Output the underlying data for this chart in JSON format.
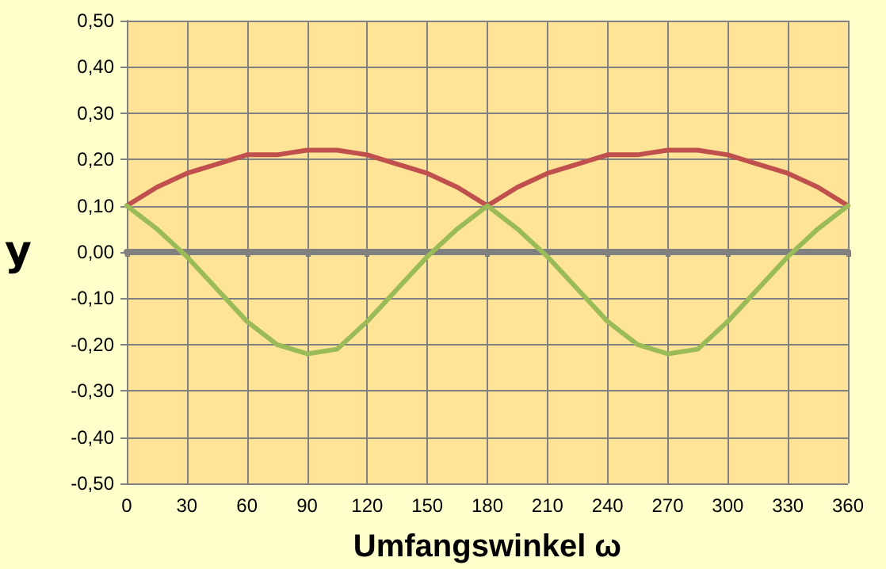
{
  "chart_data": {
    "type": "line",
    "xlabel": "Umfangswinkel ω",
    "ylabel": "y",
    "x": [
      0,
      15,
      30,
      45,
      60,
      75,
      90,
      105,
      120,
      135,
      150,
      165,
      180,
      195,
      210,
      225,
      240,
      255,
      270,
      285,
      300,
      315,
      330,
      345,
      360
    ],
    "series": [
      {
        "color": "#c0504d",
        "values": [
          0.1,
          0.14,
          0.17,
          0.19,
          0.21,
          0.21,
          0.22,
          0.22,
          0.21,
          0.19,
          0.17,
          0.14,
          0.1,
          0.14,
          0.17,
          0.19,
          0.21,
          0.21,
          0.22,
          0.22,
          0.21,
          0.19,
          0.17,
          0.14,
          0.1
        ]
      },
      {
        "color": "#9bbb59",
        "values": [
          0.1,
          0.05,
          -0.01,
          -0.08,
          -0.15,
          -0.2,
          -0.22,
          -0.21,
          -0.15,
          -0.08,
          -0.01,
          0.05,
          0.1,
          0.05,
          -0.01,
          -0.08,
          -0.15,
          -0.2,
          -0.22,
          -0.21,
          -0.15,
          -0.08,
          -0.01,
          0.05,
          0.1
        ]
      }
    ],
    "xlim": [
      0,
      360
    ],
    "xticks": [
      0,
      30,
      60,
      90,
      120,
      150,
      180,
      210,
      240,
      270,
      300,
      330,
      360
    ],
    "ylim": [
      -0.5,
      0.5
    ],
    "yticks": [
      {
        "value": -0.5,
        "label": "-0,50"
      },
      {
        "value": -0.4,
        "label": "-0,40"
      },
      {
        "value": -0.3,
        "label": "-0,30"
      },
      {
        "value": -0.2,
        "label": "-0,20"
      },
      {
        "value": -0.1,
        "label": "-0,10"
      },
      {
        "value": 0,
        "label": "0,00"
      },
      {
        "value": 0.1,
        "label": "0,10"
      },
      {
        "value": 0.2,
        "label": "0,20"
      },
      {
        "value": 0.3,
        "label": "0,30"
      },
      {
        "value": 0.4,
        "label": "0,40"
      },
      {
        "value": 0.5,
        "label": "0,50"
      }
    ],
    "grid": true,
    "marker": "none",
    "line_style": "solid"
  }
}
